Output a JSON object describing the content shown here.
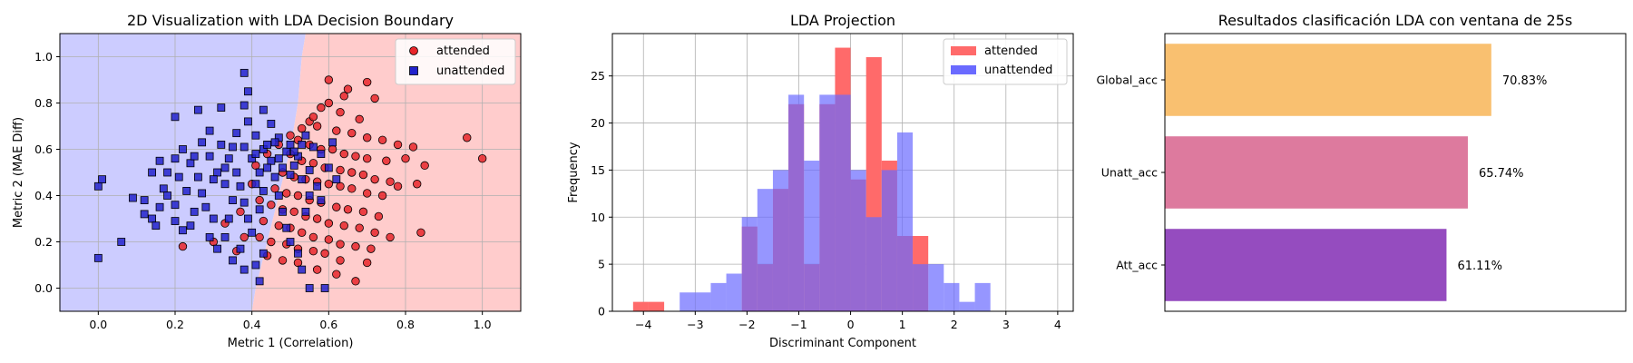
{
  "chart_data": [
    {
      "type": "scatter",
      "title": "2D Visualization with LDA Decision Boundary",
      "xlabel": "Metric 1 (Correlation)",
      "ylabel": "Metric 2 (MAE Diff)",
      "xlim": [
        -0.1,
        1.1
      ],
      "ylim": [
        -0.1,
        1.1
      ],
      "xticks": [
        "0.0",
        "0.2",
        "0.4",
        "0.6",
        "0.8",
        "1.0"
      ],
      "yticks": [
        "0.0",
        "0.2",
        "0.4",
        "0.6",
        "0.8",
        "1.0"
      ],
      "grid": true,
      "legend_position": "top-right",
      "boundary": [
        [
          0.54,
          1.1
        ],
        [
          0.53,
          1.0
        ],
        [
          0.52,
          0.8
        ],
        [
          0.5,
          0.6
        ],
        [
          0.47,
          0.4
        ],
        [
          0.44,
          0.2
        ],
        [
          0.41,
          0.0
        ],
        [
          0.4,
          -0.1
        ]
      ],
      "region_colors": {
        "left": "#ccccff",
        "right": "#ffcccc"
      },
      "series": [
        {
          "name": "attended",
          "color": "#e8262a",
          "marker": "circle",
          "points": [
            [
              0.96,
              0.65
            ],
            [
              1.0,
              0.56
            ],
            [
              0.6,
              0.9
            ],
            [
              0.65,
              0.86
            ],
            [
              0.7,
              0.89
            ],
            [
              0.72,
              0.82
            ],
            [
              0.58,
              0.78
            ],
            [
              0.63,
              0.76
            ],
            [
              0.68,
              0.73
            ],
            [
              0.55,
              0.72
            ],
            [
              0.57,
              0.7
            ],
            [
              0.62,
              0.68
            ],
            [
              0.66,
              0.67
            ],
            [
              0.7,
              0.65
            ],
            [
              0.74,
              0.64
            ],
            [
              0.78,
              0.62
            ],
            [
              0.82,
              0.61
            ],
            [
              0.52,
              0.64
            ],
            [
              0.55,
              0.62
            ],
            [
              0.58,
              0.6
            ],
            [
              0.61,
              0.6
            ],
            [
              0.64,
              0.58
            ],
            [
              0.67,
              0.57
            ],
            [
              0.7,
              0.56
            ],
            [
              0.75,
              0.55
            ],
            [
              0.8,
              0.56
            ],
            [
              0.85,
              0.53
            ],
            [
              0.5,
              0.58
            ],
            [
              0.53,
              0.55
            ],
            [
              0.56,
              0.54
            ],
            [
              0.59,
              0.52
            ],
            [
              0.63,
              0.51
            ],
            [
              0.66,
              0.5
            ],
            [
              0.69,
              0.49
            ],
            [
              0.72,
              0.47
            ],
            [
              0.76,
              0.46
            ],
            [
              0.78,
              0.44
            ],
            [
              0.83,
              0.45
            ],
            [
              0.48,
              0.5
            ],
            [
              0.51,
              0.48
            ],
            [
              0.54,
              0.47
            ],
            [
              0.57,
              0.46
            ],
            [
              0.6,
              0.45
            ],
            [
              0.63,
              0.44
            ],
            [
              0.66,
              0.43
            ],
            [
              0.7,
              0.41
            ],
            [
              0.74,
              0.4
            ],
            [
              0.46,
              0.43
            ],
            [
              0.49,
              0.41
            ],
            [
              0.52,
              0.4
            ],
            [
              0.55,
              0.38
            ],
            [
              0.58,
              0.37
            ],
            [
              0.62,
              0.35
            ],
            [
              0.65,
              0.34
            ],
            [
              0.69,
              0.33
            ],
            [
              0.73,
              0.31
            ],
            [
              0.45,
              0.36
            ],
            [
              0.48,
              0.34
            ],
            [
              0.51,
              0.33
            ],
            [
              0.54,
              0.31
            ],
            [
              0.57,
              0.3
            ],
            [
              0.6,
              0.28
            ],
            [
              0.64,
              0.27
            ],
            [
              0.68,
              0.26
            ],
            [
              0.72,
              0.24
            ],
            [
              0.76,
              0.22
            ],
            [
              0.84,
              0.24
            ],
            [
              0.43,
              0.29
            ],
            [
              0.47,
              0.27
            ],
            [
              0.5,
              0.26
            ],
            [
              0.53,
              0.24
            ],
            [
              0.56,
              0.22
            ],
            [
              0.6,
              0.21
            ],
            [
              0.63,
              0.19
            ],
            [
              0.67,
              0.18
            ],
            [
              0.71,
              0.17
            ],
            [
              0.42,
              0.22
            ],
            [
              0.45,
              0.2
            ],
            [
              0.49,
              0.19
            ],
            [
              0.52,
              0.17
            ],
            [
              0.56,
              0.16
            ],
            [
              0.59,
              0.15
            ],
            [
              0.63,
              0.12
            ],
            [
              0.7,
              0.11
            ],
            [
              0.44,
              0.14
            ],
            [
              0.48,
              0.12
            ],
            [
              0.52,
              0.11
            ],
            [
              0.57,
              0.08
            ],
            [
              0.62,
              0.06
            ],
            [
              0.67,
              0.03
            ],
            [
              0.4,
              0.45
            ],
            [
              0.42,
              0.38
            ],
            [
              0.37,
              0.33
            ],
            [
              0.33,
              0.28
            ],
            [
              0.38,
              0.22
            ],
            [
              0.36,
              0.16
            ],
            [
              0.22,
              0.18
            ],
            [
              0.3,
              0.2
            ],
            [
              0.41,
              0.53
            ],
            [
              0.44,
              0.58
            ],
            [
              0.47,
              0.62
            ],
            [
              0.5,
              0.66
            ],
            [
              0.53,
              0.69
            ],
            [
              0.56,
              0.74
            ],
            [
              0.6,
              0.8
            ],
            [
              0.64,
              0.83
            ]
          ]
        },
        {
          "name": "unattended",
          "color": "#2222cc",
          "marker": "square",
          "points": [
            [
              0.0,
              0.44
            ],
            [
              0.01,
              0.47
            ],
            [
              0.0,
              0.13
            ],
            [
              0.06,
              0.2
            ],
            [
              0.09,
              0.39
            ],
            [
              0.12,
              0.38
            ],
            [
              0.12,
              0.32
            ],
            [
              0.14,
              0.3
            ],
            [
              0.15,
              0.27
            ],
            [
              0.16,
              0.35
            ],
            [
              0.17,
              0.43
            ],
            [
              0.14,
              0.5
            ],
            [
              0.16,
              0.55
            ],
            [
              0.18,
              0.5
            ],
            [
              0.18,
              0.4
            ],
            [
              0.2,
              0.36
            ],
            [
              0.2,
              0.29
            ],
            [
              0.22,
              0.25
            ],
            [
              0.24,
              0.27
            ],
            [
              0.25,
              0.33
            ],
            [
              0.23,
              0.42
            ],
            [
              0.21,
              0.48
            ],
            [
              0.2,
              0.56
            ],
            [
              0.22,
              0.6
            ],
            [
              0.24,
              0.54
            ],
            [
              0.26,
              0.48
            ],
            [
              0.27,
              0.41
            ],
            [
              0.28,
              0.35
            ],
            [
              0.3,
              0.3
            ],
            [
              0.29,
              0.22
            ],
            [
              0.31,
              0.17
            ],
            [
              0.33,
              0.22
            ],
            [
              0.34,
              0.3
            ],
            [
              0.35,
              0.38
            ],
            [
              0.33,
              0.45
            ],
            [
              0.31,
              0.5
            ],
            [
              0.29,
              0.57
            ],
            [
              0.27,
              0.63
            ],
            [
              0.29,
              0.68
            ],
            [
              0.32,
              0.62
            ],
            [
              0.34,
              0.56
            ],
            [
              0.36,
              0.5
            ],
            [
              0.37,
              0.44
            ],
            [
              0.38,
              0.37
            ],
            [
              0.39,
              0.3
            ],
            [
              0.4,
              0.24
            ],
            [
              0.37,
              0.17
            ],
            [
              0.35,
              0.12
            ],
            [
              0.38,
              0.08
            ],
            [
              0.41,
              0.1
            ],
            [
              0.43,
              0.15
            ],
            [
              0.42,
              0.03
            ],
            [
              0.42,
              0.34
            ],
            [
              0.43,
              0.42
            ],
            [
              0.42,
              0.5
            ],
            [
              0.4,
              0.56
            ],
            [
              0.38,
              0.61
            ],
            [
              0.36,
              0.67
            ],
            [
              0.39,
              0.72
            ],
            [
              0.41,
              0.66
            ],
            [
              0.43,
              0.6
            ],
            [
              0.45,
              0.55
            ],
            [
              0.46,
              0.48
            ],
            [
              0.47,
              0.4
            ],
            [
              0.48,
              0.33
            ],
            [
              0.49,
              0.26
            ],
            [
              0.5,
              0.2
            ],
            [
              0.52,
              0.15
            ],
            [
              0.53,
              0.08
            ],
            [
              0.55,
              0.0
            ],
            [
              0.59,
              0.0
            ],
            [
              0.54,
              0.33
            ],
            [
              0.55,
              0.4
            ],
            [
              0.53,
              0.47
            ],
            [
              0.51,
              0.53
            ],
            [
              0.49,
              0.59
            ],
            [
              0.47,
              0.65
            ],
            [
              0.45,
              0.71
            ],
            [
              0.43,
              0.77
            ],
            [
              0.46,
              0.63
            ],
            [
              0.5,
              0.62
            ],
            [
              0.52,
              0.57
            ],
            [
              0.55,
              0.51
            ],
            [
              0.57,
              0.44
            ],
            [
              0.58,
              0.38
            ],
            [
              0.56,
              0.61
            ],
            [
              0.54,
              0.66
            ],
            [
              0.58,
              0.58
            ],
            [
              0.6,
              0.52
            ],
            [
              0.62,
              0.47
            ],
            [
              0.61,
              0.63
            ],
            [
              0.39,
              0.85
            ],
            [
              0.38,
              0.79
            ],
            [
              0.32,
              0.78
            ],
            [
              0.26,
              0.77
            ],
            [
              0.2,
              0.74
            ],
            [
              0.38,
              0.93
            ],
            [
              0.41,
              0.45
            ],
            [
              0.44,
              0.52
            ],
            [
              0.33,
              0.52
            ],
            [
              0.3,
              0.47
            ],
            [
              0.25,
              0.57
            ],
            [
              0.47,
              0.56
            ],
            [
              0.5,
              0.49
            ],
            [
              0.35,
              0.61
            ],
            [
              0.41,
              0.58
            ],
            [
              0.44,
              0.62
            ],
            [
              0.48,
              0.52
            ],
            [
              0.51,
              0.59
            ],
            [
              0.53,
              0.62
            ]
          ]
        }
      ]
    },
    {
      "type": "histogram",
      "title": "LDA Projection",
      "xlabel": "Discriminant Component",
      "ylabel": "Frequency",
      "xlim": [
        -4.6,
        4.3
      ],
      "ylim": [
        0,
        29.5
      ],
      "xticks": [
        "−4",
        "−3",
        "−2",
        "−1",
        "0",
        "1",
        "2",
        "3",
        "4"
      ],
      "yticks": [
        "0",
        "5",
        "10",
        "15",
        "20",
        "25"
      ],
      "grid": true,
      "legend_position": "top-right",
      "series": [
        {
          "name": "attended",
          "color": "#ff6a6a",
          "bin_width": 0.3,
          "bin_start": -4.2,
          "counts": [
            1,
            1,
            0,
            0,
            0,
            0,
            0,
            9,
            5,
            13,
            22,
            5,
            22,
            28,
            14,
            27,
            16,
            8,
            8,
            0,
            0,
            0,
            0,
            0,
            0,
            0,
            0
          ]
        },
        {
          "name": "unattended",
          "color": "#6a6aff",
          "bin_width": 0.3,
          "bin_start": -3.3,
          "counts": [
            2,
            2,
            3,
            4,
            10,
            13,
            15,
            23,
            16,
            23,
            23,
            15,
            10,
            15,
            19,
            5,
            5,
            3,
            1,
            3
          ]
        }
      ]
    },
    {
      "type": "bar",
      "orientation": "horizontal",
      "title": "Resultados clasificación LDA con ventana de 25s",
      "xlim": [
        0,
        100
      ],
      "categories": [
        "Global_acc",
        "Unatt_acc",
        "Att_acc"
      ],
      "values": [
        70.83,
        65.74,
        61.11
      ],
      "value_labels": [
        "70.83%",
        "65.74%",
        "61.11%"
      ],
      "colors": [
        "#f9c070",
        "#dd7a9e",
        "#954cbf"
      ]
    }
  ]
}
